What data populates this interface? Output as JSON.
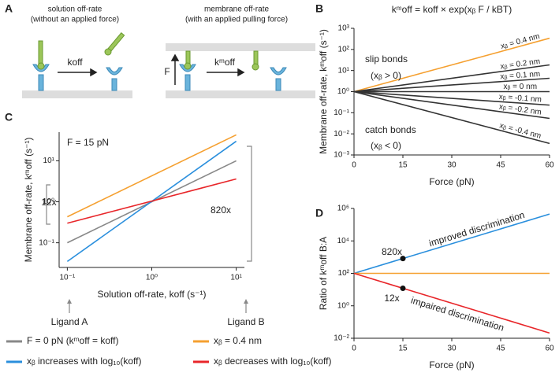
{
  "panel_labels": [
    "A",
    "B",
    "C",
    "D"
  ],
  "diagram": {
    "left_title": "solution off-rate",
    "left_subtitle": "(without an applied force)",
    "left_rate": "koff",
    "right_title": "membrane off-rate",
    "right_subtitle": "(with an applied pulling force)",
    "right_rate": "kᵐoff",
    "force": "F"
  },
  "chart_data": [
    {
      "type": "line",
      "title": "kᵐoff = koff × exp(xᵦ F / kBT)",
      "xlabel": "Force (pN)",
      "ylabel": "Membrane off-rate, kᵐoff (s⁻¹)",
      "x": [
        0,
        60
      ],
      "xlim": [
        0,
        60
      ],
      "xticks": [
        0,
        15,
        30,
        45,
        60
      ],
      "ylim": [
        0.001,
        1000
      ],
      "ylog": true,
      "yticks": [
        {
          "value": 0.001,
          "label": "10⁻³"
        },
        {
          "value": 0.01,
          "label": "10⁻²"
        },
        {
          "value": 0.1,
          "label": "10⁻¹"
        },
        {
          "value": 1,
          "label": "10⁰"
        },
        {
          "value": 10,
          "label": "10¹"
        },
        {
          "value": 100,
          "label": "10²"
        },
        {
          "value": 1000,
          "label": "10³"
        }
      ],
      "series": [
        {
          "name": "xᵦ = 0.4 nm",
          "color": "#f5a030",
          "values": [
            1,
            340
          ]
        },
        {
          "name": "xᵦ = 0.2 nm",
          "color": "#333333",
          "values": [
            1,
            18.5
          ]
        },
        {
          "name": "xᵦ = 0.1 nm",
          "color": "#333333",
          "values": [
            1,
            4.3
          ]
        },
        {
          "name": "xᵦ = 0 nm",
          "color": "#333333",
          "values": [
            1,
            1
          ]
        },
        {
          "name": "xᵦ = -0.1 nm",
          "color": "#333333",
          "values": [
            1,
            0.23
          ]
        },
        {
          "name": "xᵦ = -0.2 nm",
          "color": "#333333",
          "values": [
            1,
            0.054
          ]
        },
        {
          "name": "xᵦ = -0.4 nm",
          "color": "#333333",
          "values": [
            1,
            0.0035
          ]
        }
      ],
      "annotations": [
        "slip bonds",
        "(xᵦ > 0)",
        "catch bonds",
        "(xᵦ < 0)"
      ]
    },
    {
      "type": "line",
      "xlabel": "Solution off-rate, koff (s⁻¹)",
      "ylabel": "Membrane off-rate, kᵐoff (s⁻¹)",
      "x": [
        0.1,
        10
      ],
      "xlog": true,
      "xlim": [
        0.08,
        12.5
      ],
      "ylog": true,
      "ylim": [
        0.025,
        50
      ],
      "xticks": [
        {
          "value": 0.1,
          "label": "10⁻¹"
        },
        {
          "value": 1,
          "label": "10⁰"
        },
        {
          "value": 10,
          "label": "10¹"
        }
      ],
      "yticks": [
        {
          "value": 0.1,
          "label": "10⁻¹"
        },
        {
          "value": 1,
          "label": "10⁰"
        },
        {
          "value": 10,
          "label": "10¹"
        }
      ],
      "series": [
        {
          "name": "F = 0 pN (kᵐoff = koff)",
          "color": "#888888",
          "values": [
            0.1,
            10
          ]
        },
        {
          "name": "xᵦ = 0.4 nm",
          "color": "#f5a030",
          "values": [
            0.43,
            43
          ]
        },
        {
          "name": "xᵦ increases with log₁₀(koff)",
          "color": "#2a8fdd",
          "values": [
            0.035,
            30
          ]
        },
        {
          "name": "xᵦ decreases with log₁₀(koff)",
          "color": "#e8262a",
          "values": [
            0.3,
            3.6
          ]
        }
      ],
      "annotations": [
        "F = 15 pN",
        "12x",
        "820x",
        "Ligand A",
        "Ligand B"
      ]
    },
    {
      "type": "line",
      "xlabel": "Force (pN)",
      "ylabel": "Ratio of kᵐoff B:A",
      "x": [
        0,
        60
      ],
      "xlim": [
        0,
        60
      ],
      "xticks": [
        0,
        15,
        30,
        45,
        60
      ],
      "ylog": true,
      "ylim": [
        0.01,
        1000000
      ],
      "yticks": [
        {
          "value": 0.01,
          "label": "10⁻²"
        },
        {
          "value": 1,
          "label": "10⁰"
        },
        {
          "value": 100,
          "label": "10²"
        },
        {
          "value": 10000,
          "label": "10⁴"
        },
        {
          "value": 1000000,
          "label": "10⁶"
        }
      ],
      "series": [
        {
          "color": "#2a8fdd",
          "values": [
            100,
            450000
          ]
        },
        {
          "color": "#f5a030",
          "values": [
            100,
            100
          ]
        },
        {
          "color": "#e8262a",
          "values": [
            100,
            0.021
          ]
        }
      ],
      "points": {
        "x": [
          15,
          15
        ],
        "values": [
          820,
          12
        ]
      },
      "annotations": [
        "820x",
        "12x",
        "improved discrimination",
        "impaired discrimination"
      ]
    }
  ]
}
